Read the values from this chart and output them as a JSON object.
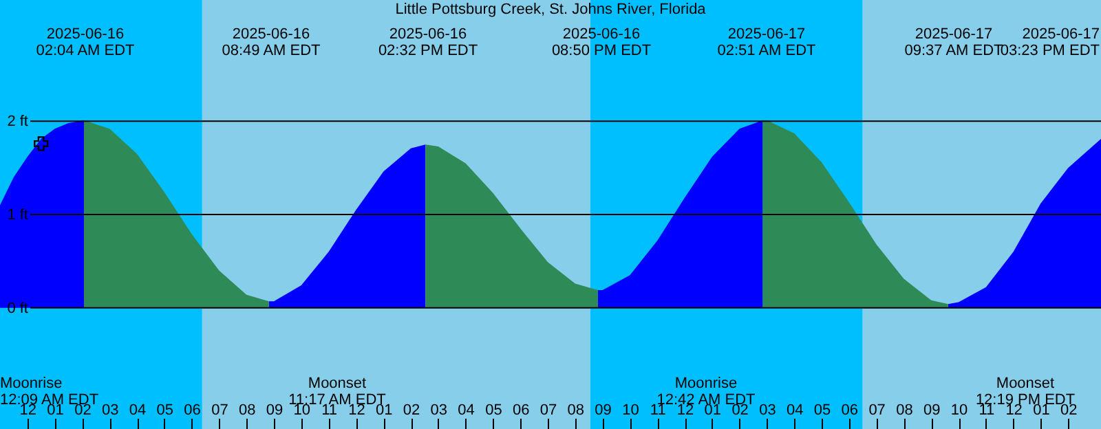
{
  "chart_data": {
    "type": "area",
    "title": "Little Pottsburg Creek, St. Johns River, Florida",
    "xlim": [
      "2025-06-15T23:00",
      "2025-06-17T15:12"
    ],
    "ylim": [
      -1.3,
      3.3
    ],
    "xticks": [
      {
        "value": "2025-06-16T00:00",
        "label": "12"
      },
      {
        "value": "2025-06-16T01:00",
        "label": "01"
      },
      {
        "value": "2025-06-16T02:00",
        "label": "02"
      },
      {
        "value": "2025-06-16T03:00",
        "label": "03"
      },
      {
        "value": "2025-06-16T04:00",
        "label": "04"
      },
      {
        "value": "2025-06-16T05:00",
        "label": "05"
      },
      {
        "value": "2025-06-16T06:00",
        "label": "06"
      },
      {
        "value": "2025-06-16T07:00",
        "label": "07"
      },
      {
        "value": "2025-06-16T08:00",
        "label": "08"
      },
      {
        "value": "2025-06-16T09:00",
        "label": "09"
      },
      {
        "value": "2025-06-16T10:00",
        "label": "10"
      },
      {
        "value": "2025-06-16T11:00",
        "label": "11"
      },
      {
        "value": "2025-06-16T12:00",
        "label": "12"
      },
      {
        "value": "2025-06-16T13:00",
        "label": "01"
      },
      {
        "value": "2025-06-16T14:00",
        "label": "02"
      },
      {
        "value": "2025-06-16T15:00",
        "label": "03"
      },
      {
        "value": "2025-06-16T16:00",
        "label": "04"
      },
      {
        "value": "2025-06-16T17:00",
        "label": "05"
      },
      {
        "value": "2025-06-16T18:00",
        "label": "06"
      },
      {
        "value": "2025-06-16T19:00",
        "label": "07"
      },
      {
        "value": "2025-06-16T20:00",
        "label": "08"
      },
      {
        "value": "2025-06-16T21:00",
        "label": "09"
      },
      {
        "value": "2025-06-16T22:00",
        "label": "10"
      },
      {
        "value": "2025-06-16T23:00",
        "label": "11"
      },
      {
        "value": "2025-06-17T00:00",
        "label": "12"
      },
      {
        "value": "2025-06-17T01:00",
        "label": "01"
      },
      {
        "value": "2025-06-17T02:00",
        "label": "02"
      },
      {
        "value": "2025-06-17T03:00",
        "label": "03"
      },
      {
        "value": "2025-06-17T04:00",
        "label": "04"
      },
      {
        "value": "2025-06-17T05:00",
        "label": "05"
      },
      {
        "value": "2025-06-17T06:00",
        "label": "06"
      },
      {
        "value": "2025-06-17T07:00",
        "label": "07"
      },
      {
        "value": "2025-06-17T08:00",
        "label": "08"
      },
      {
        "value": "2025-06-17T09:00",
        "label": "09"
      },
      {
        "value": "2025-06-17T10:00",
        "label": "10"
      },
      {
        "value": "2025-06-17T11:00",
        "label": "11"
      },
      {
        "value": "2025-06-17T12:00",
        "label": "12"
      },
      {
        "value": "2025-06-17T13:00",
        "label": "01"
      },
      {
        "value": "2025-06-17T14:00",
        "label": "02"
      }
    ],
    "yticks": [
      {
        "value": 0,
        "label": "0 ft"
      },
      {
        "value": 1,
        "label": "1 ft"
      },
      {
        "value": 2,
        "label": "2 ft"
      }
    ],
    "grid": "y",
    "bands": [
      {
        "axis": "x",
        "from": "2025-06-15T23:00",
        "to": "2025-06-16T06:23",
        "color": "#00bfff"
      },
      {
        "axis": "x",
        "from": "2025-06-16T06:23",
        "to": "2025-06-16T20:33",
        "color": "#87ceeb"
      },
      {
        "axis": "x",
        "from": "2025-06-16T20:33",
        "to": "2025-06-17T06:30",
        "color": "#00bfff"
      },
      {
        "axis": "x",
        "from": "2025-06-17T06:30",
        "to": "2025-06-17T15:12",
        "color": "#87ceeb"
      }
    ],
    "series": [
      {
        "color": "#0000ff",
        "x": [
          "2025-06-15T23:00",
          "2025-06-15T23:30",
          "2025-06-16T00:00",
          "2025-06-16T00:30",
          "2025-06-16T01:00",
          "2025-06-16T01:30",
          "2025-06-16T02:04",
          "2025-06-16T05:00",
          "2025-06-16T08:49",
          "2025-06-16T09:00",
          "2025-06-16T10:00",
          "2025-06-16T11:00",
          "2025-06-16T12:00",
          "2025-06-16T13:00",
          "2025-06-16T14:00",
          "2025-06-16T14:32",
          "2025-06-16T17:00",
          "2025-06-16T20:50",
          "2025-06-16T21:00",
          "2025-06-16T22:00",
          "2025-06-16T23:00",
          "2025-06-17T00:00",
          "2025-06-17T01:00",
          "2025-06-17T02:00",
          "2025-06-17T02:51",
          "2025-06-17T06:00",
          "2025-06-17T09:37",
          "2025-06-17T10:00",
          "2025-06-17T11:00",
          "2025-06-17T12:00",
          "2025-06-17T13:00",
          "2025-06-17T14:00",
          "2025-06-17T15:00",
          "2025-06-17T15:12"
        ],
        "values": [
          1.1,
          1.4,
          1.62,
          1.81,
          1.92,
          1.98,
          2.01,
          null,
          0.07,
          0.07,
          0.24,
          0.6,
          1.05,
          1.46,
          1.71,
          1.75,
          null,
          0.19,
          0.19,
          0.35,
          0.72,
          1.18,
          1.62,
          1.92,
          2.01,
          null,
          0.04,
          0.06,
          0.22,
          0.6,
          1.12,
          1.5,
          1.76,
          1.81
        ]
      },
      {
        "color": "#2e8b57",
        "x": [
          "2025-06-16T02:04",
          "2025-06-16T03:00",
          "2025-06-16T04:00",
          "2025-06-16T05:00",
          "2025-06-16T06:00",
          "2025-06-16T07:00",
          "2025-06-16T08:00",
          "2025-06-16T08:49",
          "2025-06-16T11:00",
          "2025-06-16T14:32",
          "2025-06-16T15:00",
          "2025-06-16T16:00",
          "2025-06-16T17:00",
          "2025-06-16T18:00",
          "2025-06-16T19:00",
          "2025-06-16T20:00",
          "2025-06-16T20:50",
          "2025-06-17T00:00",
          "2025-06-17T02:51",
          "2025-06-17T03:00",
          "2025-06-17T04:00",
          "2025-06-17T05:00",
          "2025-06-17T06:00",
          "2025-06-17T07:00",
          "2025-06-17T08:00",
          "2025-06-17T09:00",
          "2025-06-17T09:37"
        ],
        "values": [
          2.01,
          1.92,
          1.65,
          1.24,
          0.79,
          0.4,
          0.14,
          0.07,
          null,
          1.75,
          1.73,
          1.55,
          1.23,
          0.85,
          0.49,
          0.26,
          0.19,
          null,
          2.01,
          2.01,
          1.87,
          1.56,
          1.13,
          0.68,
          0.31,
          0.08,
          0.04
        ]
      },
      {
        "type": "scatter",
        "marker": "cross",
        "color": "#000000",
        "x": [
          "2025-06-16T00:30"
        ],
        "values": [
          1.76
        ]
      }
    ],
    "annotations": [
      "2025-06-16\n02:04 AM EDT",
      "2025-06-16\n08:49 AM EDT",
      "2025-06-16\n02:32 PM EDT",
      "2025-06-16\n08:50 PM EDT",
      "2025-06-17\n02:51 AM EDT",
      "2025-06-17\n09:37 AM EDT",
      "2025-06-17\n03:23 PM EDT",
      "Moonrise\n12:09 AM EDT",
      "Moonset\n11:17 AM EDT",
      "Moonrise\n12:42 AM EDT",
      "Moonset\n12:19 PM EDT"
    ]
  }
}
